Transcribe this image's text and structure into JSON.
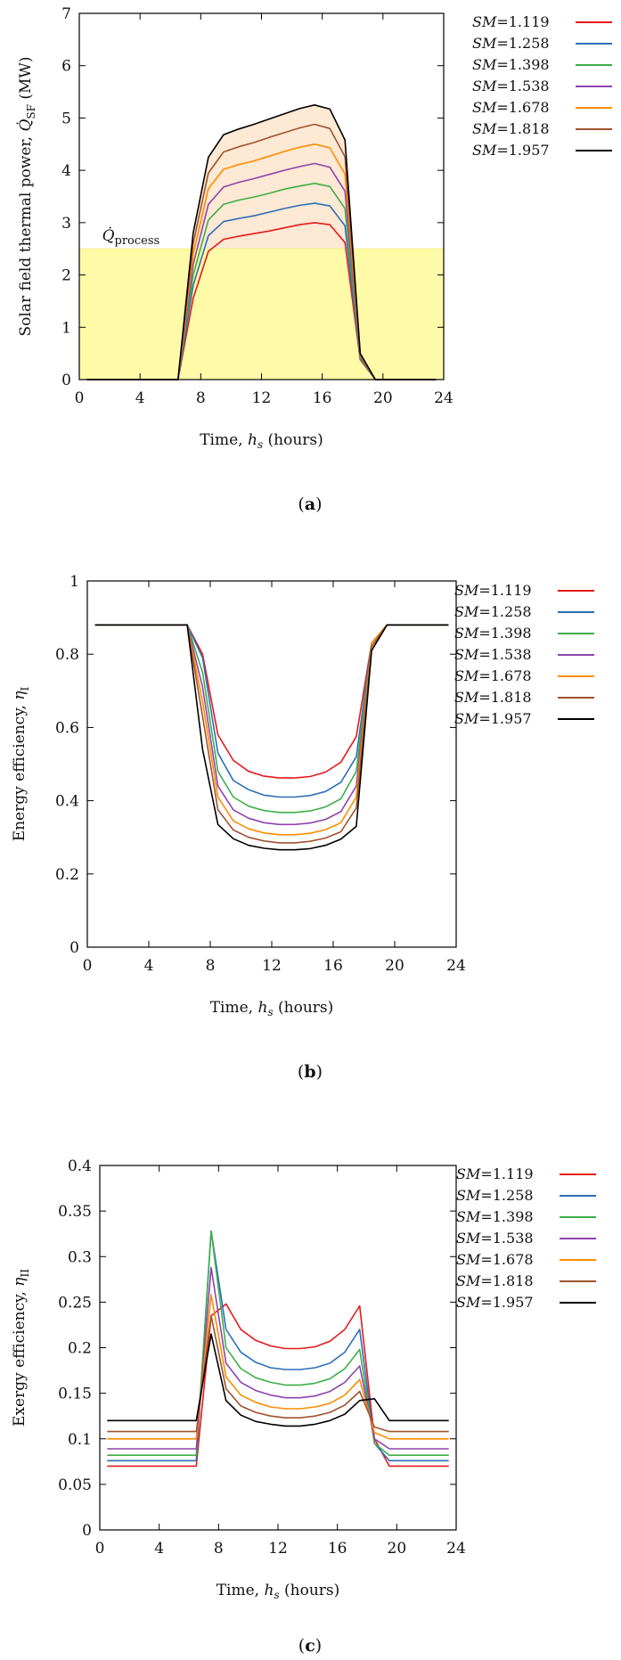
{
  "colors": {
    "sm_1_119": "#e41a1c",
    "sm_1_258": "#2b6fb8",
    "sm_1_398": "#3fae49",
    "sm_1_538": "#8e44ad",
    "sm_1_678": "#ff8c00",
    "sm_1_818": "#a0522d",
    "sm_1_957": "#000000",
    "process_fill": "#fffaa8",
    "excess_fill": "#fde9d4"
  },
  "chart_data": [
    {
      "type": "line",
      "panel_label": "(a)",
      "xlabel": "Time, hs (hours)",
      "ylabel": "Solar field thermal power, Q̇SF (MW)",
      "annotation": "Q̇process",
      "process_level": 2.5,
      "xlim": [
        0,
        24
      ],
      "ylim": [
        0,
        7
      ],
      "xticks": [
        0,
        4,
        8,
        12,
        16,
        20,
        24
      ],
      "yticks": [
        0,
        1,
        2,
        3,
        4,
        5,
        6,
        7
      ],
      "x": [
        0.5,
        6.5,
        7.5,
        8.5,
        9.5,
        10.5,
        11.5,
        12.5,
        13.5,
        14.5,
        15.5,
        16.5,
        17.5,
        18.5,
        19.5,
        23.5
      ],
      "series": [
        {
          "name": "SM=1.119",
          "values": [
            0,
            0,
            1.55,
            2.45,
            2.68,
            2.74,
            2.79,
            2.84,
            2.9,
            2.96,
            3.0,
            2.96,
            2.62,
            0.38,
            0,
            0
          ]
        },
        {
          "name": "SM=1.258",
          "values": [
            0,
            0,
            1.8,
            2.75,
            3.02,
            3.08,
            3.13,
            3.2,
            3.27,
            3.33,
            3.37,
            3.32,
            2.94,
            0.4,
            0,
            0
          ]
        },
        {
          "name": "SM=1.398",
          "values": [
            0,
            0,
            2.0,
            3.05,
            3.35,
            3.43,
            3.49,
            3.56,
            3.64,
            3.7,
            3.75,
            3.69,
            3.27,
            0.42,
            0,
            0
          ]
        },
        {
          "name": "SM=1.538",
          "values": [
            0,
            0,
            2.2,
            3.35,
            3.68,
            3.77,
            3.84,
            3.92,
            4.0,
            4.07,
            4.13,
            4.06,
            3.6,
            0.44,
            0,
            0
          ]
        },
        {
          "name": "SM=1.678",
          "values": [
            0,
            0,
            2.4,
            3.65,
            4.02,
            4.11,
            4.18,
            4.27,
            4.36,
            4.44,
            4.5,
            4.43,
            3.93,
            0.46,
            0,
            0
          ]
        },
        {
          "name": "SM=1.818",
          "values": [
            0,
            0,
            2.6,
            3.95,
            4.35,
            4.45,
            4.53,
            4.63,
            4.72,
            4.81,
            4.88,
            4.8,
            4.26,
            0.48,
            0,
            0
          ]
        },
        {
          "name": "SM=1.957",
          "values": [
            0,
            0,
            2.8,
            4.25,
            4.68,
            4.79,
            4.88,
            4.98,
            5.08,
            5.18,
            5.25,
            5.17,
            4.58,
            0.5,
            0,
            0
          ]
        }
      ],
      "legend": [
        "SM=1.119",
        "SM=1.258",
        "SM=1.398",
        "SM=1.538",
        "SM=1.678",
        "SM=1.818",
        "SM=1.957"
      ],
      "legend_position": "right-outside"
    },
    {
      "type": "line",
      "panel_label": "(b)",
      "xlabel": "Time, hs (hours)",
      "ylabel": "Energy efficiency, ηI",
      "xlim": [
        0,
        24
      ],
      "ylim": [
        0,
        1
      ],
      "xticks": [
        0,
        4,
        8,
        12,
        16,
        20,
        24
      ],
      "yticks": [
        0,
        0.2,
        0.4,
        0.6,
        0.8,
        1
      ],
      "x": [
        0.5,
        6.5,
        7.5,
        8.5,
        9.5,
        10.5,
        11.5,
        12.5,
        13.5,
        14.5,
        15.5,
        16.5,
        17.5,
        18.5,
        19.5,
        23.5
      ],
      "series": [
        {
          "name": "SM=1.119",
          "values": [
            0.88,
            0.88,
            0.8,
            0.58,
            0.51,
            0.48,
            0.467,
            0.462,
            0.462,
            0.466,
            0.478,
            0.505,
            0.575,
            0.83,
            0.88,
            0.88
          ]
        },
        {
          "name": "SM=1.258",
          "values": [
            0.88,
            0.88,
            0.79,
            0.53,
            0.455,
            0.43,
            0.415,
            0.41,
            0.41,
            0.414,
            0.425,
            0.45,
            0.52,
            0.83,
            0.88,
            0.88
          ]
        },
        {
          "name": "SM=1.398",
          "values": [
            0.88,
            0.88,
            0.75,
            0.48,
            0.41,
            0.385,
            0.373,
            0.368,
            0.368,
            0.372,
            0.383,
            0.405,
            0.48,
            0.83,
            0.88,
            0.88
          ]
        },
        {
          "name": "SM=1.538",
          "values": [
            0.88,
            0.88,
            0.71,
            0.44,
            0.375,
            0.352,
            0.34,
            0.335,
            0.335,
            0.339,
            0.349,
            0.37,
            0.44,
            0.83,
            0.88,
            0.88
          ]
        },
        {
          "name": "SM=1.678",
          "values": [
            0.88,
            0.88,
            0.67,
            0.41,
            0.345,
            0.323,
            0.312,
            0.307,
            0.307,
            0.311,
            0.321,
            0.34,
            0.41,
            0.83,
            0.88,
            0.88
          ]
        },
        {
          "name": "SM=1.818",
          "values": [
            0.88,
            0.88,
            0.63,
            0.375,
            0.32,
            0.3,
            0.29,
            0.285,
            0.285,
            0.289,
            0.298,
            0.315,
            0.38,
            0.82,
            0.88,
            0.88
          ]
        },
        {
          "name": "SM=1.957",
          "values": [
            0.88,
            0.88,
            0.54,
            0.335,
            0.296,
            0.278,
            0.27,
            0.266,
            0.266,
            0.269,
            0.278,
            0.295,
            0.33,
            0.81,
            0.88,
            0.88
          ]
        }
      ],
      "legend": [
        "SM=1.119",
        "SM=1.258",
        "SM=1.398",
        "SM=1.538",
        "SM=1.678",
        "SM=1.818",
        "SM=1.957"
      ],
      "legend_position": "right-outside"
    },
    {
      "type": "line",
      "panel_label": "(c)",
      "xlabel": "Time, hs (hours)",
      "ylabel": "Exergy efficiency, ηII",
      "xlim": [
        0,
        24
      ],
      "ylim": [
        0,
        0.4
      ],
      "xticks": [
        0,
        4,
        8,
        12,
        16,
        20,
        24
      ],
      "yticks": [
        0,
        0.05,
        0.1,
        0.15,
        0.2,
        0.25,
        0.3,
        0.35,
        0.4
      ],
      "x": [
        0.5,
        6.5,
        7.5,
        8.5,
        9.5,
        10.5,
        11.5,
        12.5,
        13.5,
        14.5,
        15.5,
        16.5,
        17.5,
        18.5,
        19.5,
        23.5
      ],
      "series": [
        {
          "name": "SM=1.119",
          "values": [
            0.07,
            0.07,
            0.235,
            0.248,
            0.22,
            0.208,
            0.202,
            0.199,
            0.199,
            0.201,
            0.207,
            0.22,
            0.246,
            0.1,
            0.07,
            0.07
          ]
        },
        {
          "name": "SM=1.258",
          "values": [
            0.076,
            0.076,
            0.328,
            0.22,
            0.195,
            0.184,
            0.178,
            0.176,
            0.176,
            0.178,
            0.183,
            0.195,
            0.22,
            0.095,
            0.076,
            0.076
          ]
        },
        {
          "name": "SM=1.398",
          "values": [
            0.082,
            0.082,
            0.328,
            0.2,
            0.177,
            0.167,
            0.162,
            0.159,
            0.159,
            0.161,
            0.166,
            0.177,
            0.198,
            0.095,
            0.082,
            0.082
          ]
        },
        {
          "name": "SM=1.538",
          "values": [
            0.089,
            0.089,
            0.288,
            0.183,
            0.162,
            0.153,
            0.148,
            0.145,
            0.145,
            0.147,
            0.152,
            0.162,
            0.18,
            0.1,
            0.089,
            0.089
          ]
        },
        {
          "name": "SM=1.678",
          "values": [
            0.1,
            0.1,
            0.258,
            0.168,
            0.148,
            0.14,
            0.135,
            0.133,
            0.133,
            0.135,
            0.139,
            0.148,
            0.165,
            0.107,
            0.1,
            0.1
          ]
        },
        {
          "name": "SM=1.818",
          "values": [
            0.108,
            0.108,
            0.235,
            0.155,
            0.136,
            0.129,
            0.125,
            0.123,
            0.123,
            0.125,
            0.129,
            0.137,
            0.152,
            0.113,
            0.108,
            0.108
          ]
        },
        {
          "name": "SM=1.957",
          "values": [
            0.12,
            0.12,
            0.215,
            0.142,
            0.126,
            0.119,
            0.116,
            0.114,
            0.114,
            0.116,
            0.12,
            0.127,
            0.142,
            0.144,
            0.12,
            0.12
          ]
        }
      ],
      "legend": [
        "SM=1.119",
        "SM=1.258",
        "SM=1.398",
        "SM=1.538",
        "SM=1.678",
        "SM=1.818",
        "SM=1.957"
      ],
      "legend_position": "right-outside"
    }
  ]
}
